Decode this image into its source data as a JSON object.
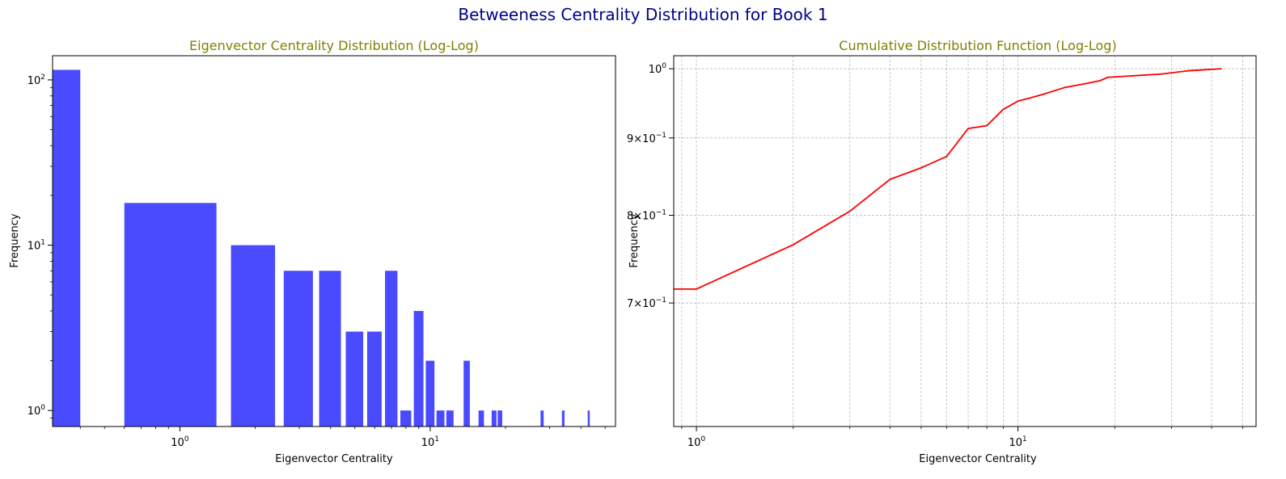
{
  "figure": {
    "suptitle": "Betweeness Centrality Distribution for Book 1",
    "suptitle_color": "#00008b",
    "subtitle_color": "#808000"
  },
  "chart_data": [
    {
      "type": "bar",
      "title": "Eigenvector Centrality Distribution (Log-Log)",
      "xlabel": "Eigenvector Centrality",
      "ylabel": "Frequency",
      "xscale": "log",
      "yscale": "log",
      "xlim": [
        0.31,
        55
      ],
      "ylim": [
        0.8,
        140
      ],
      "grid": false,
      "bar_color": "#4a4aff",
      "x_ticks": [
        {
          "value": 1,
          "base": "10",
          "exp": "0"
        },
        {
          "value": 10,
          "base": "10",
          "exp": "1"
        }
      ],
      "y_ticks": [
        {
          "value": 1,
          "base": "10",
          "exp": "0"
        },
        {
          "value": 10,
          "base": "10",
          "exp": "1"
        },
        {
          "value": 100,
          "base": "10",
          "exp": "2"
        }
      ],
      "bars": [
        {
          "x": 0,
          "value": 115
        },
        {
          "x": 1,
          "value": 18
        },
        {
          "x": 2,
          "value": 10
        },
        {
          "x": 3,
          "value": 7
        },
        {
          "x": 4,
          "value": 7
        },
        {
          "x": 5,
          "value": 3
        },
        {
          "x": 6,
          "value": 3
        },
        {
          "x": 7,
          "value": 7
        },
        {
          "x": 8,
          "value": 1
        },
        {
          "x": 9,
          "value": 4
        },
        {
          "x": 10,
          "value": 2
        },
        {
          "x": 11,
          "value": 1
        },
        {
          "x": 12,
          "value": 1
        },
        {
          "x": 14,
          "value": 2
        },
        {
          "x": 16,
          "value": 1
        },
        {
          "x": 18,
          "value": 1
        },
        {
          "x": 19,
          "value": 1
        },
        {
          "x": 28,
          "value": 1
        },
        {
          "x": 34,
          "value": 1
        },
        {
          "x": 43,
          "value": 1
        }
      ]
    },
    {
      "type": "line",
      "title": "Cumulative Distribution Function (Log-Log)",
      "xlabel": "Eigenvector Centrality",
      "ylabel": "Frequency",
      "xscale": "log",
      "yscale": "log",
      "xlim": [
        0.85,
        55
      ],
      "ylim": [
        0.58,
        1.02
      ],
      "grid": true,
      "line_color": "#ff0000",
      "x_ticks": [
        {
          "value": 1,
          "base": "10",
          "exp": "0"
        },
        {
          "value": 10,
          "base": "10",
          "exp": "1"
        }
      ],
      "y_ticks": [
        {
          "value": 0.7,
          "mant": "7",
          "base": "10",
          "exp": "−1"
        },
        {
          "value": 0.8,
          "mant": "8",
          "base": "10",
          "exp": "−1"
        },
        {
          "value": 0.9,
          "mant": "9",
          "base": "10",
          "exp": "−1"
        },
        {
          "value": 1.0,
          "base": "10",
          "exp": "0"
        }
      ],
      "x": [
        0.5,
        1,
        2,
        3,
        4,
        5,
        6,
        7,
        8,
        9,
        10,
        11,
        12,
        14,
        16,
        18,
        19,
        28,
        34,
        43
      ],
      "y": [
        0.715,
        0.715,
        0.765,
        0.805,
        0.845,
        0.86,
        0.875,
        0.913,
        0.917,
        0.94,
        0.952,
        0.957,
        0.962,
        0.972,
        0.977,
        0.982,
        0.987,
        0.992,
        0.997,
        1.0
      ]
    }
  ]
}
